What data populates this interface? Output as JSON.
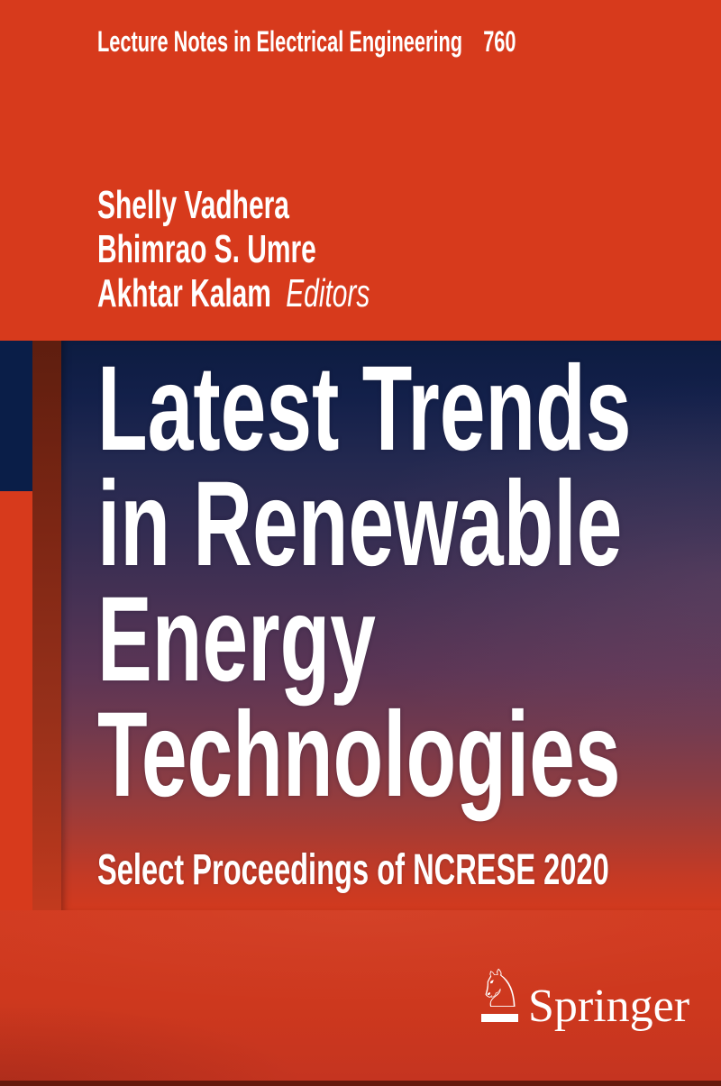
{
  "series": {
    "name": "Lecture Notes in Electrical Engineering",
    "volume": "760"
  },
  "editors": {
    "names": [
      "Shelly Vadhera",
      "Bhimrao S. Umre",
      "Akhtar Kalam"
    ],
    "role_label": "Editors"
  },
  "title": {
    "lines": [
      "Latest Trends",
      "in Renewable",
      "Energy",
      "Technologies"
    ]
  },
  "subtitle": "Select Proceedings of NCRESE 2020",
  "publisher": {
    "name": "Springer",
    "horse_glyph": "♘"
  },
  "colors": {
    "cover_red": "#d73a1c",
    "panel_navy_top": "#0d1c41",
    "panel_mid_purple": "#4a3254",
    "panel_bottom_red": "#d23a1e",
    "accent_navy_square": "#0a1e48",
    "left_strip_dark": "#5e1e0f",
    "bottom_edge_dark": "#64190c",
    "text_white": "#ffffff"
  }
}
